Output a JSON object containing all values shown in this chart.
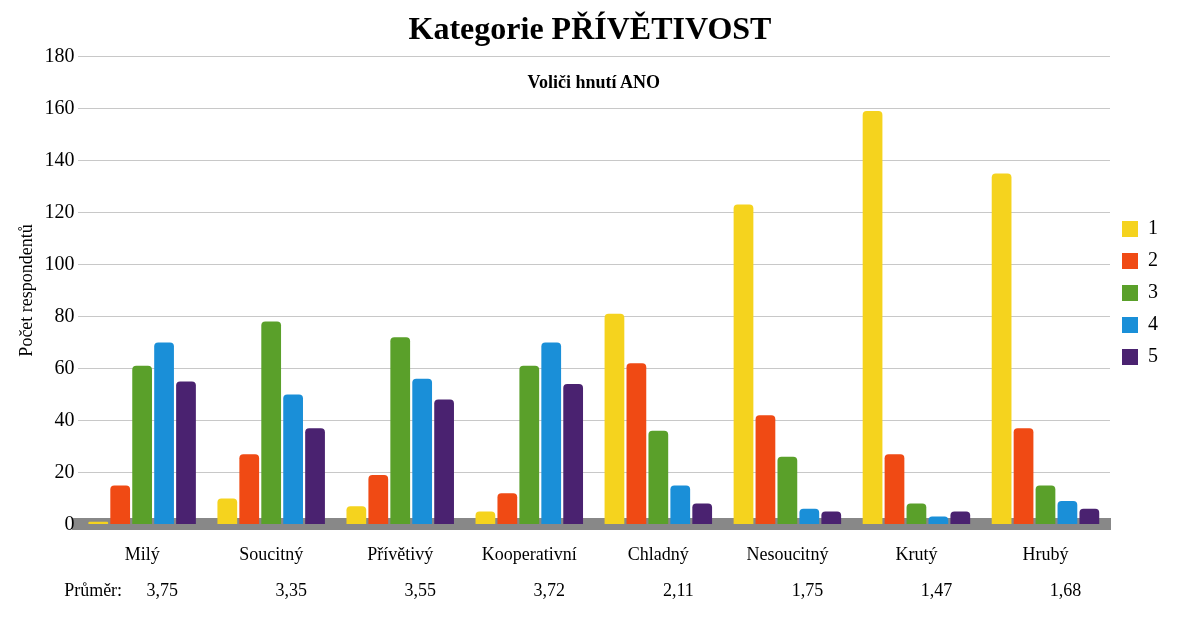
{
  "chart_data": {
    "type": "bar",
    "title": "Kategorie PŘÍVĚTIVOST",
    "subtitle": "Voliči hnutí ANO",
    "ylabel": "Počet respondentů",
    "categories": [
      "Milý",
      "Soucitný",
      "Přívětivý",
      "Kooperativní",
      "Chladný",
      "Nesoucitný",
      "Krutý",
      "Hrubý"
    ],
    "series": [
      {
        "name": "1",
        "color": "#f5d31e",
        "values": [
          1,
          10,
          7,
          5,
          81,
          123,
          159,
          135
        ]
      },
      {
        "name": "2",
        "color": "#f04a14",
        "values": [
          15,
          27,
          19,
          12,
          62,
          42,
          27,
          37
        ]
      },
      {
        "name": "3",
        "color": "#5aa02a",
        "values": [
          61,
          78,
          72,
          61,
          36,
          26,
          8,
          15
        ]
      },
      {
        "name": "4",
        "color": "#1a8fd8",
        "values": [
          70,
          50,
          56,
          70,
          15,
          6,
          3,
          9
        ]
      },
      {
        "name": "5",
        "color": "#4a2270",
        "values": [
          55,
          37,
          48,
          54,
          8,
          5,
          5,
          6
        ]
      }
    ],
    "ylim": [
      0,
      180
    ],
    "yticks": [
      0,
      20,
      40,
      60,
      80,
      100,
      120,
      140,
      160,
      180
    ],
    "grid": "y",
    "legend": "right",
    "annotations": [
      "Průměr:",
      "3,75",
      "3,35",
      "3,55",
      "3,72",
      "2,11",
      "1,75",
      "1,47",
      "1,68"
    ]
  }
}
